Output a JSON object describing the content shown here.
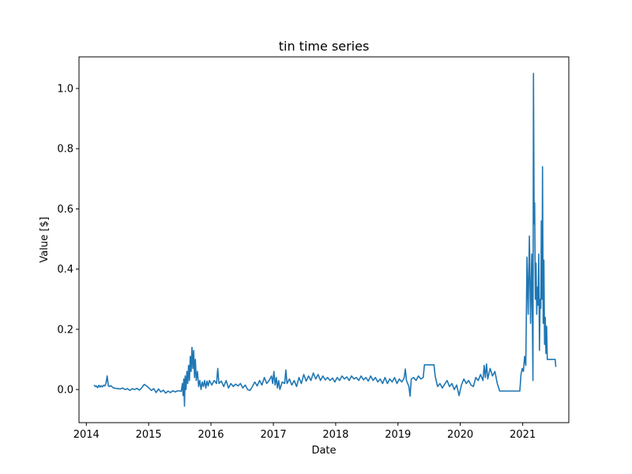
{
  "chart_data": {
    "type": "line",
    "title": "tin time series",
    "xlabel": "Date",
    "ylabel": "Value [$]",
    "xlim": [
      "2013-11-19",
      "2021-09-28"
    ],
    "ylim": [
      -0.11,
      1.105
    ],
    "grid": false,
    "x_ticks": [
      "2014",
      "2015",
      "2016",
      "2017",
      "2018",
      "2019",
      "2020",
      "2021"
    ],
    "y_ticks": [
      "0.0",
      "0.2",
      "0.4",
      "0.6",
      "0.8",
      "1.0"
    ],
    "line_color": "#1f77b4",
    "series": [
      {
        "points": [
          [
            "2014-02-15",
            0.015
          ],
          [
            "2014-02-22",
            0.01
          ],
          [
            "2014-03-01",
            0.012
          ],
          [
            "2014-03-08",
            0.006
          ],
          [
            "2014-03-15",
            0.014
          ],
          [
            "2014-03-22",
            0.008
          ],
          [
            "2014-03-29",
            0.013
          ],
          [
            "2014-04-05",
            0.009
          ],
          [
            "2014-04-12",
            0.014
          ],
          [
            "2014-04-19",
            0.012
          ],
          [
            "2014-04-26",
            0.02
          ],
          [
            "2014-05-03",
            0.045
          ],
          [
            "2014-05-10",
            0.012
          ],
          [
            "2014-05-17",
            0.01
          ],
          [
            "2014-05-24",
            0.013
          ],
          [
            "2014-06-07",
            0.006
          ],
          [
            "2014-06-21",
            0.004
          ],
          [
            "2014-07-05",
            0.003
          ],
          [
            "2014-07-19",
            0.002
          ],
          [
            "2014-08-02",
            0.005
          ],
          [
            "2014-08-16",
            0.0
          ],
          [
            "2014-08-30",
            0.003
          ],
          [
            "2014-09-13",
            -0.003
          ],
          [
            "2014-09-27",
            0.003
          ],
          [
            "2014-10-11",
            0.0
          ],
          [
            "2014-10-25",
            0.004
          ],
          [
            "2014-11-08",
            -0.002
          ],
          [
            "2014-11-22",
            0.006
          ],
          [
            "2014-12-06",
            0.017
          ],
          [
            "2014-12-20",
            0.012
          ],
          [
            "2015-01-03",
            0.005
          ],
          [
            "2015-01-17",
            -0.003
          ],
          [
            "2015-01-31",
            0.003
          ],
          [
            "2015-02-14",
            -0.01
          ],
          [
            "2015-02-28",
            0.002
          ],
          [
            "2015-03-14",
            -0.008
          ],
          [
            "2015-03-28",
            -0.002
          ],
          [
            "2015-04-11",
            -0.012
          ],
          [
            "2015-04-25",
            -0.005
          ],
          [
            "2015-05-09",
            -0.01
          ],
          [
            "2015-05-23",
            -0.004
          ],
          [
            "2015-06-06",
            -0.008
          ],
          [
            "2015-06-20",
            -0.004
          ],
          [
            "2015-07-04",
            -0.005
          ],
          [
            "2015-07-11",
            -0.006
          ],
          [
            "2015-07-18",
            0.02
          ],
          [
            "2015-07-22",
            -0.02
          ],
          [
            "2015-07-26",
            0.035
          ],
          [
            "2015-07-30",
            -0.055
          ],
          [
            "2015-08-03",
            0.045
          ],
          [
            "2015-08-08",
            0.0
          ],
          [
            "2015-08-13",
            0.06
          ],
          [
            "2015-08-18",
            0.02
          ],
          [
            "2015-08-23",
            0.08
          ],
          [
            "2015-08-28",
            0.03
          ],
          [
            "2015-09-02",
            0.11
          ],
          [
            "2015-09-07",
            0.06
          ],
          [
            "2015-09-12",
            0.14
          ],
          [
            "2015-09-17",
            0.07
          ],
          [
            "2015-09-22",
            0.13
          ],
          [
            "2015-09-27",
            0.04
          ],
          [
            "2015-10-02",
            0.1
          ],
          [
            "2015-10-07",
            0.03
          ],
          [
            "2015-10-14",
            0.06
          ],
          [
            "2015-10-21",
            0.01
          ],
          [
            "2015-10-28",
            0.03
          ],
          [
            "2015-11-04",
            0.0
          ],
          [
            "2015-11-11",
            0.025
          ],
          [
            "2015-11-18",
            0.01
          ],
          [
            "2015-11-25",
            0.03
          ],
          [
            "2015-12-02",
            0.005
          ],
          [
            "2015-12-09",
            0.028
          ],
          [
            "2015-12-16",
            0.012
          ],
          [
            "2015-12-23",
            0.03
          ],
          [
            "2016-01-06",
            0.015
          ],
          [
            "2016-01-20",
            0.03
          ],
          [
            "2016-02-03",
            0.02
          ],
          [
            "2016-02-10",
            0.07
          ],
          [
            "2016-02-17",
            0.02
          ],
          [
            "2016-03-02",
            0.028
          ],
          [
            "2016-03-16",
            0.01
          ],
          [
            "2016-03-30",
            0.03
          ],
          [
            "2016-04-13",
            0.005
          ],
          [
            "2016-04-27",
            0.02
          ],
          [
            "2016-05-11",
            0.01
          ],
          [
            "2016-05-25",
            0.018
          ],
          [
            "2016-06-08",
            0.012
          ],
          [
            "2016-06-22",
            0.02
          ],
          [
            "2016-07-06",
            0.005
          ],
          [
            "2016-07-20",
            0.015
          ],
          [
            "2016-08-03",
            0.0
          ],
          [
            "2016-08-17",
            -0.003
          ],
          [
            "2016-08-31",
            0.01
          ],
          [
            "2016-09-14",
            0.025
          ],
          [
            "2016-09-28",
            0.012
          ],
          [
            "2016-10-12",
            0.03
          ],
          [
            "2016-10-26",
            0.015
          ],
          [
            "2016-11-09",
            0.04
          ],
          [
            "2016-11-23",
            0.02
          ],
          [
            "2016-12-07",
            0.03
          ],
          [
            "2016-12-21",
            0.045
          ],
          [
            "2016-12-28",
            0.02
          ],
          [
            "2017-01-04",
            0.06
          ],
          [
            "2017-01-11",
            0.015
          ],
          [
            "2017-01-18",
            0.04
          ],
          [
            "2017-01-25",
            0.005
          ],
          [
            "2017-02-01",
            0.03
          ],
          [
            "2017-02-08",
            0.0
          ],
          [
            "2017-02-22",
            0.025
          ],
          [
            "2017-03-08",
            0.02
          ],
          [
            "2017-03-15",
            0.065
          ],
          [
            "2017-03-22",
            0.02
          ],
          [
            "2017-04-05",
            0.035
          ],
          [
            "2017-04-19",
            0.015
          ],
          [
            "2017-05-03",
            0.03
          ],
          [
            "2017-05-17",
            0.01
          ],
          [
            "2017-05-31",
            0.04
          ],
          [
            "2017-06-14",
            0.02
          ],
          [
            "2017-06-28",
            0.05
          ],
          [
            "2017-07-12",
            0.028
          ],
          [
            "2017-07-26",
            0.045
          ],
          [
            "2017-08-09",
            0.03
          ],
          [
            "2017-08-23",
            0.055
          ],
          [
            "2017-09-06",
            0.035
          ],
          [
            "2017-09-20",
            0.05
          ],
          [
            "2017-10-04",
            0.03
          ],
          [
            "2017-10-18",
            0.045
          ],
          [
            "2017-11-01",
            0.032
          ],
          [
            "2017-11-15",
            0.04
          ],
          [
            "2017-11-29",
            0.03
          ],
          [
            "2017-12-13",
            0.038
          ],
          [
            "2017-12-27",
            0.025
          ],
          [
            "2018-01-10",
            0.04
          ],
          [
            "2018-01-24",
            0.03
          ],
          [
            "2018-02-07",
            0.045
          ],
          [
            "2018-02-21",
            0.035
          ],
          [
            "2018-03-07",
            0.042
          ],
          [
            "2018-03-21",
            0.03
          ],
          [
            "2018-04-04",
            0.045
          ],
          [
            "2018-04-18",
            0.035
          ],
          [
            "2018-05-02",
            0.04
          ],
          [
            "2018-05-16",
            0.03
          ],
          [
            "2018-05-30",
            0.045
          ],
          [
            "2018-06-13",
            0.032
          ],
          [
            "2018-06-27",
            0.04
          ],
          [
            "2018-07-11",
            0.028
          ],
          [
            "2018-07-25",
            0.045
          ],
          [
            "2018-08-08",
            0.03
          ],
          [
            "2018-08-22",
            0.04
          ],
          [
            "2018-09-05",
            0.025
          ],
          [
            "2018-09-19",
            0.035
          ],
          [
            "2018-10-03",
            0.02
          ],
          [
            "2018-10-17",
            0.04
          ],
          [
            "2018-10-31",
            0.02
          ],
          [
            "2018-11-14",
            0.035
          ],
          [
            "2018-11-28",
            0.025
          ],
          [
            "2018-12-12",
            0.04
          ],
          [
            "2018-12-26",
            0.02
          ],
          [
            "2019-01-09",
            0.035
          ],
          [
            "2019-01-23",
            0.025
          ],
          [
            "2019-02-06",
            0.038
          ],
          [
            "2019-02-13",
            0.068
          ],
          [
            "2019-02-20",
            0.03
          ],
          [
            "2019-03-06",
            0.01
          ],
          [
            "2019-03-13",
            -0.022
          ],
          [
            "2019-03-20",
            0.035
          ],
          [
            "2019-04-03",
            0.04
          ],
          [
            "2019-04-17",
            0.03
          ],
          [
            "2019-05-01",
            0.045
          ],
          [
            "2019-05-15",
            0.035
          ],
          [
            "2019-05-29",
            0.04
          ],
          [
            "2019-06-05",
            0.082
          ],
          [
            "2019-07-31",
            0.082
          ],
          [
            "2019-08-07",
            0.045
          ],
          [
            "2019-08-21",
            0.01
          ],
          [
            "2019-09-04",
            0.02
          ],
          [
            "2019-09-18",
            0.005
          ],
          [
            "2019-10-02",
            0.018
          ],
          [
            "2019-10-16",
            0.03
          ],
          [
            "2019-10-30",
            0.01
          ],
          [
            "2019-11-13",
            0.02
          ],
          [
            "2019-11-27",
            0.0
          ],
          [
            "2019-12-11",
            0.015
          ],
          [
            "2019-12-25",
            -0.02
          ],
          [
            "2020-01-08",
            0.015
          ],
          [
            "2020-01-22",
            0.035
          ],
          [
            "2020-02-05",
            0.02
          ],
          [
            "2020-02-19",
            0.03
          ],
          [
            "2020-03-04",
            0.015
          ],
          [
            "2020-03-18",
            0.01
          ],
          [
            "2020-04-01",
            0.04
          ],
          [
            "2020-04-15",
            0.03
          ],
          [
            "2020-04-29",
            0.05
          ],
          [
            "2020-05-13",
            0.03
          ],
          [
            "2020-05-20",
            0.08
          ],
          [
            "2020-05-27",
            0.04
          ],
          [
            "2020-06-03",
            0.085
          ],
          [
            "2020-06-10",
            0.035
          ],
          [
            "2020-06-24",
            0.07
          ],
          [
            "2020-07-08",
            0.045
          ],
          [
            "2020-07-22",
            0.06
          ],
          [
            "2020-08-05",
            0.02
          ],
          [
            "2020-08-19",
            -0.005
          ],
          [
            "2020-12-15",
            -0.005
          ],
          [
            "2020-12-22",
            0.05
          ],
          [
            "2020-12-29",
            0.07
          ],
          [
            "2021-01-05",
            0.06
          ],
          [
            "2021-01-12",
            0.11
          ],
          [
            "2021-01-19",
            0.08
          ],
          [
            "2021-01-26",
            0.44
          ],
          [
            "2021-02-02",
            0.25
          ],
          [
            "2021-02-09",
            0.51
          ],
          [
            "2021-02-16",
            0.22
          ],
          [
            "2021-02-23",
            0.45
          ],
          [
            "2021-03-02",
            0.03
          ],
          [
            "2021-03-05",
            1.05
          ],
          [
            "2021-03-09",
            0.55
          ],
          [
            "2021-03-12",
            0.62
          ],
          [
            "2021-03-16",
            0.3
          ],
          [
            "2021-03-20",
            0.42
          ],
          [
            "2021-03-24",
            0.25
          ],
          [
            "2021-03-28",
            0.34
          ],
          [
            "2021-04-01",
            0.28
          ],
          [
            "2021-04-05",
            0.45
          ],
          [
            "2021-04-09",
            0.13
          ],
          [
            "2021-04-13",
            0.3
          ],
          [
            "2021-04-17",
            0.27
          ],
          [
            "2021-04-20",
            0.56
          ],
          [
            "2021-04-24",
            0.3
          ],
          [
            "2021-04-27",
            0.74
          ],
          [
            "2021-05-01",
            0.22
          ],
          [
            "2021-05-05",
            0.43
          ],
          [
            "2021-05-09",
            0.15
          ],
          [
            "2021-05-13",
            0.24
          ],
          [
            "2021-05-17",
            0.12
          ],
          [
            "2021-05-21",
            0.21
          ],
          [
            "2021-05-25",
            0.1
          ],
          [
            "2021-07-10",
            0.1
          ],
          [
            "2021-07-14",
            0.075
          ]
        ]
      }
    ]
  }
}
